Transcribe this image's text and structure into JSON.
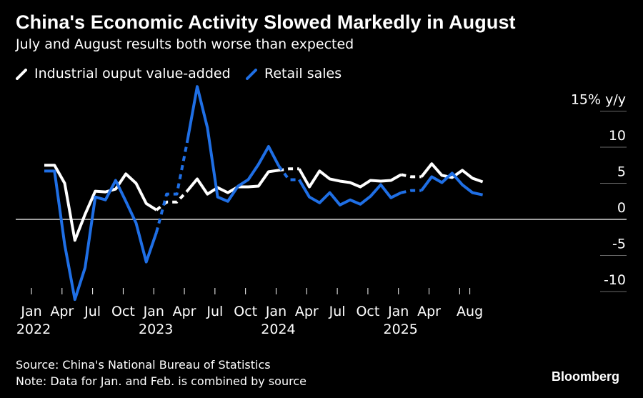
{
  "title": "China's Economic Activity Slowed Markedly in August",
  "subtitle": "July and August results both worse than expected",
  "source": "Source: China's National Bureau of Statistics",
  "note": "Note: Data for Jan. and Feb. is combined by source",
  "brand": "Bloomberg",
  "chart_data": {
    "type": "line",
    "x": [
      "2022-01",
      "2022-02",
      "2022-03",
      "2022-04",
      "2022-05",
      "2022-06",
      "2022-07",
      "2022-08",
      "2022-09",
      "2022-10",
      "2022-11",
      "2022-12",
      "2023-01",
      "2023-02",
      "2023-03",
      "2023-04",
      "2023-05",
      "2023-06",
      "2023-07",
      "2023-08",
      "2023-09",
      "2023-10",
      "2023-11",
      "2023-12",
      "2024-01",
      "2024-02",
      "2024-03",
      "2024-04",
      "2024-05",
      "2024-06",
      "2024-07",
      "2024-08",
      "2024-09",
      "2024-10",
      "2024-11",
      "2024-12",
      "2025-01",
      "2025-02",
      "2025-03",
      "2025-04",
      "2025-05",
      "2025-06",
      "2025-07",
      "2025-08"
    ],
    "series": [
      {
        "name": "Industrial ouput value-added",
        "color": "#ffffff",
        "values": [
          7.5,
          7.5,
          5.0,
          -2.9,
          0.7,
          3.9,
          3.8,
          4.2,
          6.3,
          5.0,
          2.2,
          1.3,
          2.4,
          2.4,
          3.9,
          5.6,
          3.5,
          4.4,
          3.7,
          4.5,
          4.5,
          4.6,
          6.6,
          6.8,
          7.0,
          7.0,
          4.5,
          6.7,
          5.6,
          5.3,
          5.1,
          4.5,
          5.4,
          5.3,
          5.4,
          6.2,
          5.9,
          5.9,
          7.7,
          6.1,
          5.8,
          6.8,
          5.7,
          5.2
        ],
        "dashed_segments": [
          [
            "2022-12",
            "2023-03"
          ],
          [
            "2023-12",
            "2024-02"
          ],
          [
            "2024-12",
            "2025-02"
          ]
        ]
      },
      {
        "name": "Retail sales",
        "color": "#1f6fe5",
        "values": [
          6.7,
          6.7,
          -3.5,
          -11.1,
          -6.7,
          3.1,
          2.7,
          5.4,
          2.5,
          -0.5,
          -5.9,
          -1.8,
          3.5,
          3.5,
          10.6,
          18.4,
          12.7,
          3.1,
          2.5,
          4.6,
          5.5,
          7.6,
          10.1,
          7.4,
          5.5,
          5.5,
          3.1,
          2.3,
          3.7,
          2.0,
          2.7,
          2.1,
          3.2,
          4.8,
          3.0,
          3.7,
          4.0,
          4.0,
          5.9,
          5.1,
          6.4,
          4.8,
          3.7,
          3.4
        ],
        "dashed_segments": [
          [
            "2022-12",
            "2023-03"
          ],
          [
            "2023-12",
            "2024-02"
          ],
          [
            "2024-12",
            "2025-02"
          ]
        ]
      }
    ],
    "xtick_labels": [
      {
        "x": "2022-01",
        "label": "Jan",
        "year": "2022"
      },
      {
        "x": "2022-04",
        "label": "Apr"
      },
      {
        "x": "2022-07",
        "label": "Jul"
      },
      {
        "x": "2022-10",
        "label": "Oct"
      },
      {
        "x": "2023-01",
        "label": "Jan",
        "year": "2023"
      },
      {
        "x": "2023-04",
        "label": "Apr"
      },
      {
        "x": "2023-07",
        "label": "Jul"
      },
      {
        "x": "2023-10",
        "label": "Oct"
      },
      {
        "x": "2024-01",
        "label": "Jan",
        "year": "2024"
      },
      {
        "x": "2024-04",
        "label": "Apr"
      },
      {
        "x": "2024-07",
        "label": "Jul"
      },
      {
        "x": "2024-10",
        "label": "Oct"
      },
      {
        "x": "2025-01",
        "label": "Jan",
        "year": "2025"
      },
      {
        "x": "2025-04",
        "label": "Apr"
      },
      {
        "x": "2025-08",
        "label": "Aug"
      }
    ],
    "yticks": [
      {
        "value": 15,
        "label": "15% y/y"
      },
      {
        "value": 10,
        "label": "10"
      },
      {
        "value": 5,
        "label": "5"
      },
      {
        "value": 0,
        "label": "0"
      },
      {
        "value": -5,
        "label": "-5"
      },
      {
        "value": -10,
        "label": "-10"
      }
    ],
    "ylim": [
      -11.5,
      18.5
    ],
    "grid": true,
    "legend_position": "top-left"
  }
}
